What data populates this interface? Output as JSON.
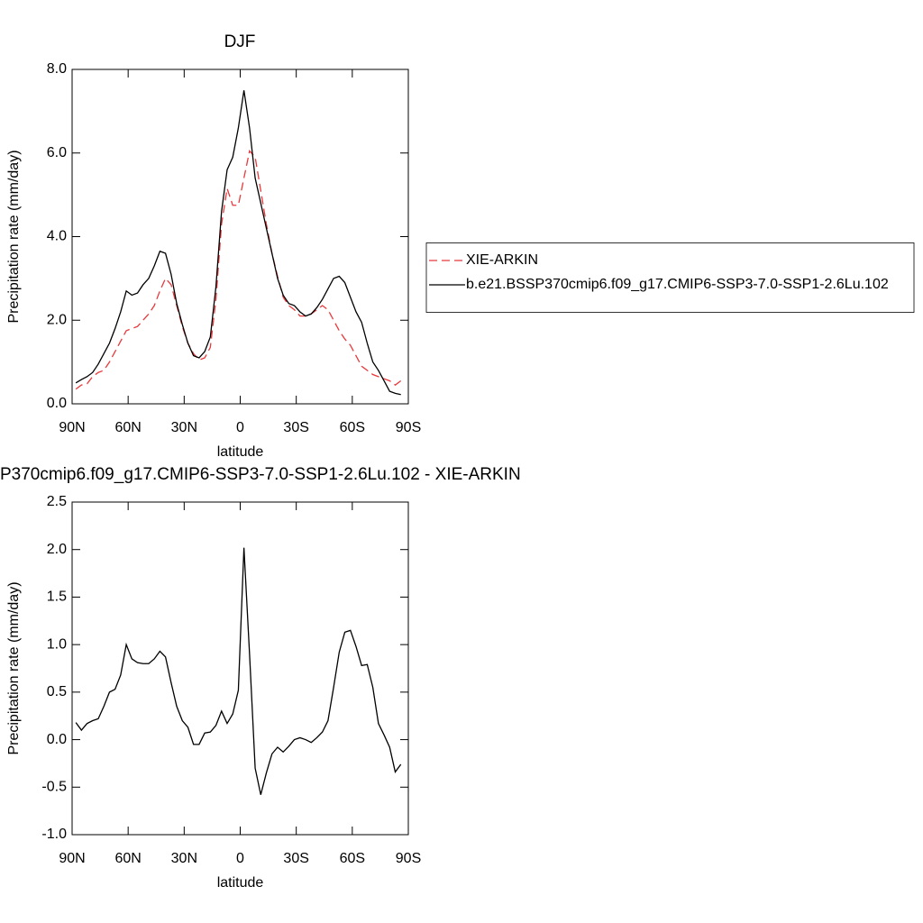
{
  "chart_data": [
    {
      "type": "line",
      "title": "DJF",
      "xlabel": "latitude",
      "ylabel": "Precipitation rate (mm/day)",
      "x": [
        88,
        85,
        82,
        79,
        76,
        73,
        70,
        67,
        64,
        61,
        58,
        55,
        52,
        49,
        46,
        43,
        40,
        37,
        34,
        31,
        28,
        25,
        22,
        19,
        16,
        13,
        10,
        7,
        4,
        1,
        -2,
        -5,
        -8,
        -11,
        -14,
        -17,
        -20,
        -23,
        -26,
        -29,
        -32,
        -35,
        -38,
        -41,
        -44,
        -47,
        -50,
        -53,
        -56,
        -59,
        -62,
        -65,
        -68,
        -71,
        -74,
        -77,
        -80,
        -83,
        -86
      ],
      "series": [
        {
          "name": "XIE-ARKIN",
          "color": "#e8393c",
          "dashed": true,
          "values": [
            0.35,
            0.45,
            0.48,
            0.65,
            0.75,
            0.8,
            1.0,
            1.25,
            1.5,
            1.75,
            1.8,
            1.85,
            2.0,
            2.15,
            2.35,
            2.7,
            3.0,
            2.85,
            2.35,
            1.85,
            1.45,
            1.2,
            1.05,
            1.1,
            1.35,
            2.5,
            4.3,
            5.15,
            4.75,
            4.75,
            5.4,
            6.05,
            5.9,
            5.1,
            4.3,
            3.6,
            3.05,
            2.55,
            2.35,
            2.25,
            2.1,
            2.1,
            2.15,
            2.25,
            2.35,
            2.25,
            2.0,
            1.75,
            1.55,
            1.4,
            1.15,
            0.9,
            0.8,
            0.7,
            0.65,
            0.6,
            0.55,
            0.45,
            0.55
          ]
        },
        {
          "name": "b.e21.BSSP370cmip6.f09_g17.CMIP6-SSP3-7.0-SSP1-2.6Lu.102",
          "color": "#000000",
          "dashed": false,
          "values": [
            0.5,
            0.58,
            0.65,
            0.75,
            0.95,
            1.2,
            1.45,
            1.8,
            2.2,
            2.7,
            2.6,
            2.65,
            2.85,
            3.0,
            3.3,
            3.65,
            3.6,
            3.1,
            2.4,
            1.9,
            1.45,
            1.15,
            1.1,
            1.25,
            1.6,
            2.8,
            4.6,
            5.6,
            5.9,
            6.6,
            7.5,
            6.6,
            5.4,
            4.8,
            4.2,
            3.6,
            3.0,
            2.6,
            2.4,
            2.35,
            2.2,
            2.1,
            2.15,
            2.3,
            2.5,
            2.75,
            3.0,
            3.05,
            2.9,
            2.55,
            2.2,
            1.95,
            1.45,
            1.0,
            0.8,
            0.55,
            0.3,
            0.25,
            0.22
          ]
        }
      ],
      "xlim": [
        90,
        -90
      ],
      "xticks": [
        {
          "value": 90,
          "label": "90N"
        },
        {
          "value": 60,
          "label": "60N"
        },
        {
          "value": 30,
          "label": "30N"
        },
        0,
        {
          "value": -30,
          "label": "30S"
        },
        {
          "value": -60,
          "label": "60S"
        },
        {
          "value": -90,
          "label": "90S"
        }
      ],
      "ylim": [
        0,
        8
      ],
      "yticks": [
        {
          "value": 0,
          "label": "0.0"
        },
        {
          "value": 2,
          "label": "2.0"
        },
        {
          "value": 4,
          "label": "4.0"
        },
        {
          "value": 6,
          "label": "6.0"
        },
        {
          "value": 8,
          "label": "8.0"
        }
      ],
      "legend": "right"
    },
    {
      "type": "line",
      "title": "P370cmip6.f09_g17.CMIP6-SSP3-7.0-SSP1-2.6Lu.102 - XIE-ARKIN",
      "xlabel": "latitude",
      "ylabel": "Precipitation rate (mm/day)",
      "x": [
        88,
        85,
        82,
        79,
        76,
        73,
        70,
        67,
        64,
        61,
        58,
        55,
        52,
        49,
        46,
        43,
        40,
        37,
        34,
        31,
        28,
        25,
        22,
        19,
        16,
        13,
        10,
        7,
        4,
        1,
        -2,
        -5,
        -8,
        -11,
        -14,
        -17,
        -20,
        -23,
        -26,
        -29,
        -32,
        -35,
        -38,
        -41,
        -44,
        -47,
        -50,
        -53,
        -56,
        -59,
        -62,
        -65,
        -68,
        -71,
        -74,
        -77,
        -80,
        -83,
        -86
      ],
      "series": [
        {
          "color": "#000000",
          "dashed": false,
          "values": [
            0.18,
            0.1,
            0.17,
            0.2,
            0.22,
            0.35,
            0.5,
            0.53,
            0.68,
            1.0,
            0.85,
            0.81,
            0.8,
            0.8,
            0.85,
            0.93,
            0.87,
            0.6,
            0.35,
            0.2,
            0.13,
            -0.05,
            -0.05,
            0.07,
            0.08,
            0.15,
            0.3,
            0.17,
            0.27,
            0.52,
            2.02,
            0.9,
            -0.3,
            -0.58,
            -0.35,
            -0.15,
            -0.08,
            -0.13,
            -0.07,
            0.0,
            0.02,
            0.0,
            -0.03,
            0.02,
            0.08,
            0.2,
            0.55,
            0.92,
            1.13,
            1.15,
            0.98,
            0.78,
            0.79,
            0.55,
            0.17,
            0.05,
            -0.08,
            -0.34,
            -0.26
          ]
        }
      ],
      "xlim": [
        90,
        -90
      ],
      "xticks": [
        {
          "value": 90,
          "label": "90N"
        },
        {
          "value": 60,
          "label": "60N"
        },
        {
          "value": 30,
          "label": "30N"
        },
        0,
        {
          "value": -30,
          "label": "30S"
        },
        {
          "value": -60,
          "label": "60S"
        },
        {
          "value": -90,
          "label": "90S"
        }
      ],
      "ylim": [
        -1,
        2.5
      ],
      "yticks": [
        {
          "value": -1,
          "label": "-1.0"
        },
        -0.5,
        {
          "value": 0,
          "label": "0.0"
        },
        0.5,
        {
          "value": 1,
          "label": "1.0"
        },
        1.5,
        {
          "value": 2,
          "label": "2.0"
        },
        2.5
      ]
    }
  ]
}
